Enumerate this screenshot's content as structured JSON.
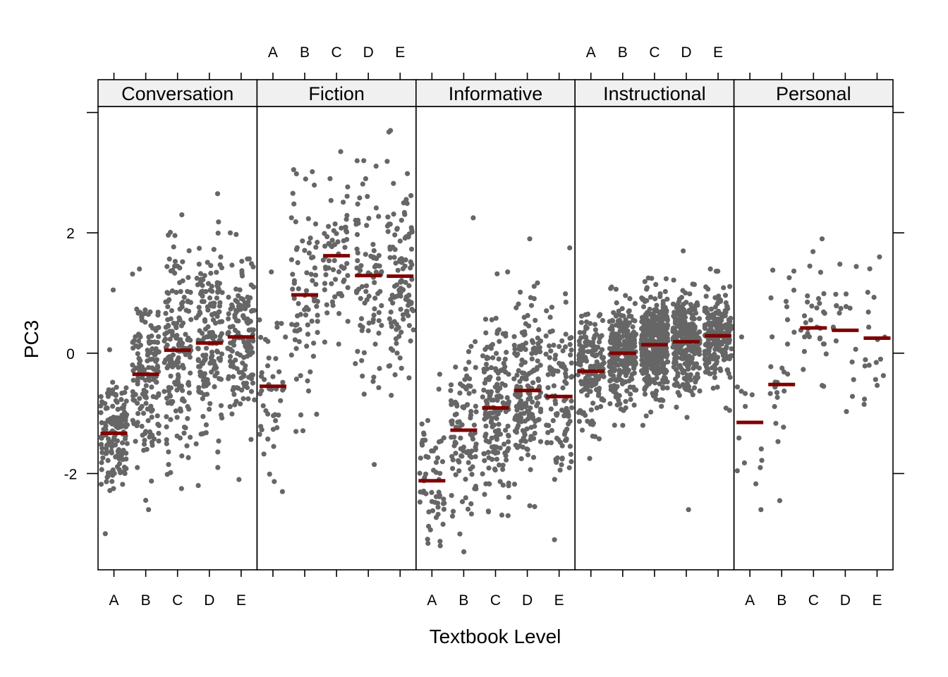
{
  "chart_data": {
    "type": "scatter",
    "subtype": "faceted jittered strip plot with group means",
    "title": "",
    "xlabel": "Textbook Level",
    "ylabel": "PC3",
    "ylim": [
      -3.6,
      4.1
    ],
    "yticks": [
      -2,
      0,
      2
    ],
    "ytick_labels": [
      "-2",
      "0",
      "2"
    ],
    "grid": false,
    "categories": [
      "A",
      "B",
      "C",
      "D",
      "E"
    ],
    "colors": {
      "points": "#666666",
      "mean_bar": "#800000",
      "strip": "#f0f0f0",
      "frame": "#000000"
    },
    "panels": [
      {
        "name": "Conversation",
        "means": [
          -1.33,
          -0.35,
          0.05,
          0.17,
          0.27
        ],
        "counts": [
          150,
          160,
          180,
          170,
          150
        ],
        "spread": [
          0.5,
          0.72,
          0.82,
          0.72,
          0.62
        ],
        "ranges": [
          [
            -3.0,
            1.05
          ],
          [
            -2.6,
            1.4
          ],
          [
            -2.25,
            2.3
          ],
          [
            -2.2,
            2.65
          ],
          [
            -2.1,
            2.0
          ]
        ]
      },
      {
        "name": "Fiction",
        "means": [
          -0.55,
          0.97,
          1.62,
          1.29,
          1.28
        ],
        "counts": [
          45,
          80,
          65,
          85,
          110
        ],
        "spread": [
          0.72,
          0.78,
          0.6,
          0.8,
          0.82
        ],
        "ranges": [
          [
            -2.3,
            1.35
          ],
          [
            -1.3,
            3.05
          ],
          [
            0.15,
            3.35
          ],
          [
            -1.85,
            3.2
          ],
          [
            -0.7,
            3.7
          ]
        ]
      },
      {
        "name": "Informative",
        "means": [
          -2.12,
          -1.28,
          -0.91,
          -0.62,
          -0.72
        ],
        "counts": [
          60,
          100,
          170,
          170,
          110
        ],
        "spread": [
          0.62,
          0.68,
          0.78,
          0.72,
          0.72
        ],
        "ranges": [
          [
            -3.2,
            -0.35
          ],
          [
            -3.3,
            2.25
          ],
          [
            -2.7,
            1.35
          ],
          [
            -2.55,
            1.9
          ],
          [
            -3.1,
            1.75
          ]
        ]
      },
      {
        "name": "Instructional",
        "means": [
          -0.3,
          0.0,
          0.14,
          0.19,
          0.29
        ],
        "counts": [
          170,
          280,
          380,
          300,
          220
        ],
        "spread": [
          0.42,
          0.4,
          0.4,
          0.4,
          0.4
        ],
        "ranges": [
          [
            -1.75,
            0.65
          ],
          [
            -1.2,
            1.1
          ],
          [
            -1.2,
            1.25
          ],
          [
            -2.6,
            1.7
          ],
          [
            -0.95,
            1.4
          ]
        ]
      },
      {
        "name": "Personal",
        "means": [
          -1.15,
          -0.52,
          0.42,
          0.38,
          0.25
        ],
        "counts": [
          14,
          28,
          32,
          18,
          18
        ],
        "spread": [
          0.65,
          0.95,
          0.55,
          0.62,
          0.6
        ],
        "ranges": [
          [
            -2.6,
            0.27
          ],
          [
            -2.45,
            1.38
          ],
          [
            -0.55,
            1.9
          ],
          [
            -0.97,
            1.48
          ],
          [
            -0.85,
            1.6
          ]
        ]
      }
    ]
  }
}
